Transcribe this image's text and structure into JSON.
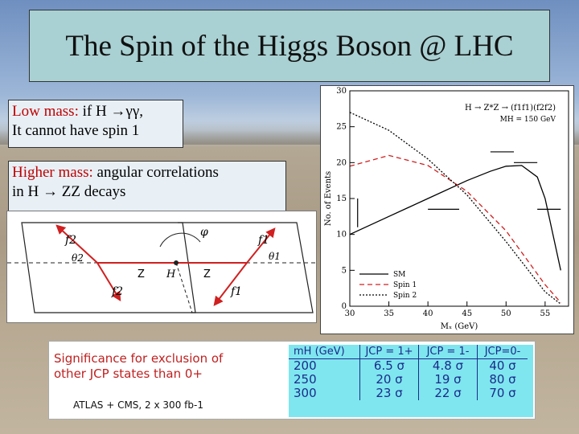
{
  "slide": {
    "title": "The Spin of the Higgs Boson @ LHC",
    "note1": {
      "highlight": "Low mass:",
      "rest": "if H →γγ,",
      "line2": "It cannot have spin 1"
    },
    "note2": {
      "highlight": "Higher mass:",
      "rest": "angular correlations",
      "line2": "in H → ZZ decays"
    }
  },
  "diagram": {
    "labels": {
      "f2_top": "f2",
      "f1_top": "f1",
      "f2_bot": "f2",
      "f1_bot": "f1",
      "phi": "φ",
      "theta2": "θ2",
      "theta1": "θ1",
      "z_left": "Z",
      "h": "H",
      "z_right": "Z"
    }
  },
  "chart_data": {
    "type": "line",
    "title": "H → Z*Z → (f1f1)(f2f2)",
    "subtitle": "MH = 150 GeV",
    "xlabel": "Mₓ (GeV)",
    "ylabel": "No. of Events",
    "xlim": [
      30,
      58
    ],
    "ylim": [
      0,
      30
    ],
    "x_ticks": [
      "30",
      "35",
      "40",
      "45",
      "50",
      "55"
    ],
    "y_ticks": [
      "0",
      "5",
      "10",
      "15",
      "20",
      "25",
      "30"
    ],
    "legend_position": "bottom-right",
    "series": [
      {
        "name": "SM",
        "style": "solid",
        "x": [
          30,
          35,
          40,
          45,
          48,
          50,
          52,
          54,
          55,
          56,
          57
        ],
        "y": [
          10,
          12.5,
          15,
          17.5,
          18.8,
          19.5,
          19.6,
          18,
          15,
          10,
          5
        ]
      },
      {
        "name": "Spin 1",
        "style": "dashed",
        "x": [
          30,
          35,
          40,
          45,
          50,
          55,
          57
        ],
        "y": [
          19.5,
          21,
          19.6,
          16,
          10.5,
          3,
          0.5
        ]
      },
      {
        "name": "Spin 2",
        "style": "dotted",
        "x": [
          30,
          35,
          40,
          45,
          50,
          55,
          57
        ],
        "y": [
          27,
          24.5,
          20.5,
          15.5,
          9,
          2,
          0.3
        ]
      }
    ],
    "histogram_steps": [
      {
        "x": [
          31,
          31
        ],
        "y": [
          11,
          15
        ]
      },
      {
        "x": [
          40,
          44
        ],
        "y": [
          13.5,
          13.5
        ]
      },
      {
        "x": [
          48,
          51
        ],
        "y": [
          21.5,
          21.5
        ]
      },
      {
        "x": [
          51,
          54
        ],
        "y": [
          20,
          20
        ]
      },
      {
        "x": [
          54,
          57
        ],
        "y": [
          13.5,
          13.5
        ]
      }
    ]
  },
  "significance": {
    "heading_line1": "Significance for exclusion of",
    "heading_line2": "other JCP states than 0+",
    "footnote": "ATLAS + CMS, 2 x 300 fb-1",
    "columns": [
      "mH (GeV)",
      "JCP = 1+",
      "JCP = 1-",
      "JCP=0-"
    ],
    "rows": [
      [
        "200",
        "6.5 σ",
        "4.8 σ",
        "40 σ"
      ],
      [
        "250",
        "20 σ",
        "19 σ",
        "80 σ"
      ],
      [
        "300",
        "23 σ",
        "22 σ",
        "70 σ"
      ]
    ]
  }
}
